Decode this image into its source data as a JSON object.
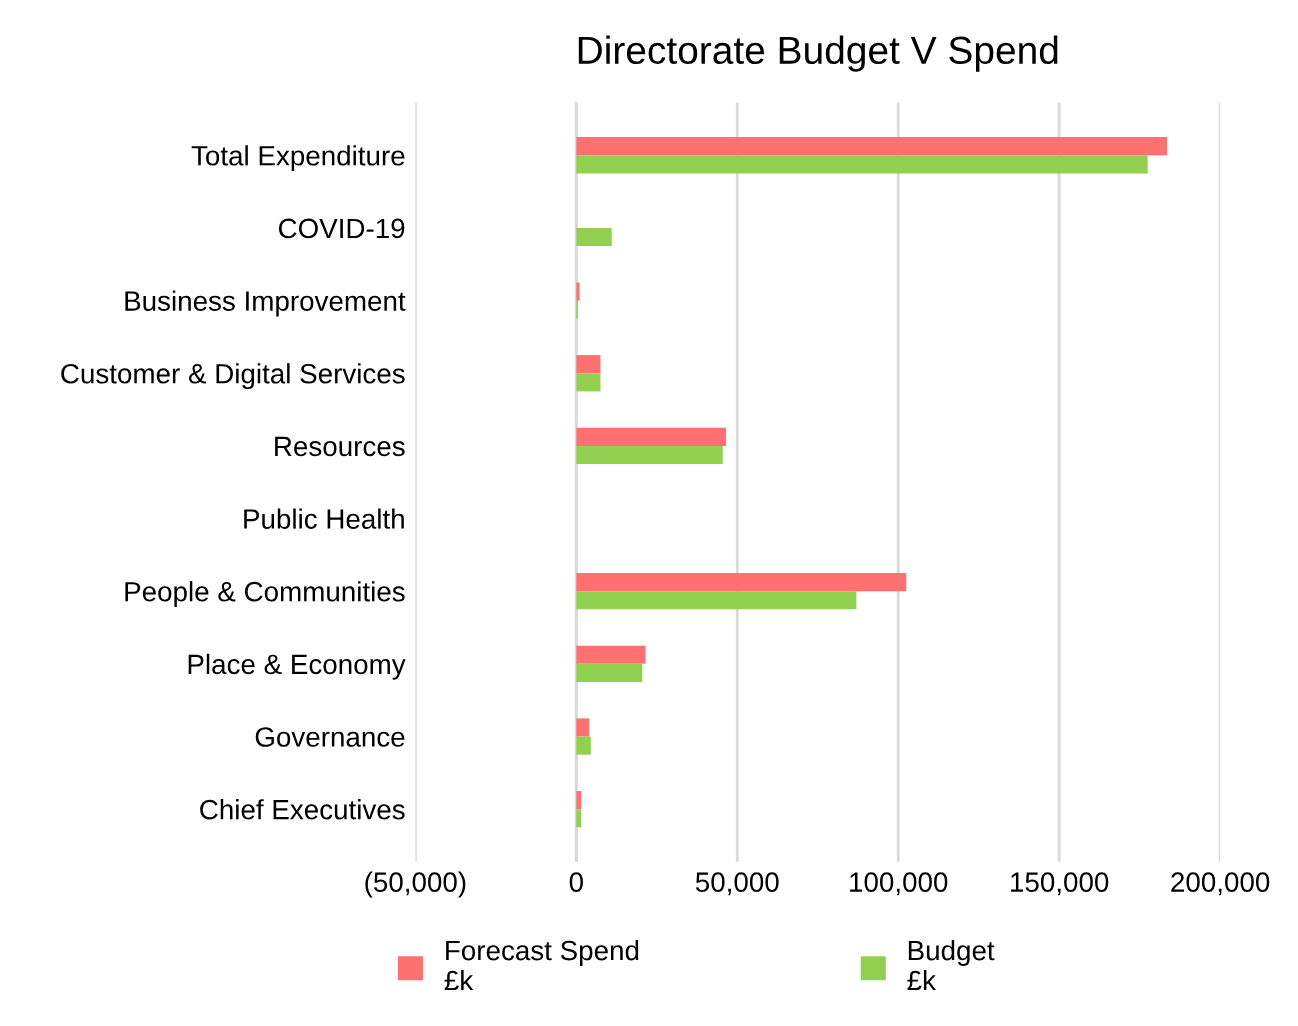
{
  "chart_data": {
    "type": "bar",
    "orientation": "horizontal",
    "title": "Directorate Budget V Spend",
    "categories": [
      "Total Expenditure",
      "COVID-19",
      "Business Improvement",
      "Customer & Digital Services",
      "Resources",
      "Public Health",
      "People & Communities",
      "Place & Economy",
      "Governance",
      "Chief Executives"
    ],
    "series": [
      {
        "name": "Forecast Spend\n£k",
        "color": "#ff7171",
        "values": [
          183500,
          0,
          1000,
          7500,
          46500,
          0,
          102500,
          21500,
          4000,
          1500
        ]
      },
      {
        "name": "Budget\n£k",
        "color": "#92d050",
        "values": [
          177500,
          11000,
          500,
          7500,
          45500,
          0,
          87000,
          20500,
          4500,
          1500
        ]
      }
    ],
    "xlim": [
      -50000,
      200000
    ],
    "xticks": [
      {
        "value": -50000,
        "label": "(50,000)"
      },
      0,
      {
        "value": 50000,
        "label": "50,000"
      },
      {
        "value": 100000,
        "label": "100,000"
      },
      {
        "value": 150000,
        "label": "150,000"
      },
      {
        "value": 200000,
        "label": "200,000"
      }
    ],
    "grid": "x",
    "legend": "bottom"
  }
}
